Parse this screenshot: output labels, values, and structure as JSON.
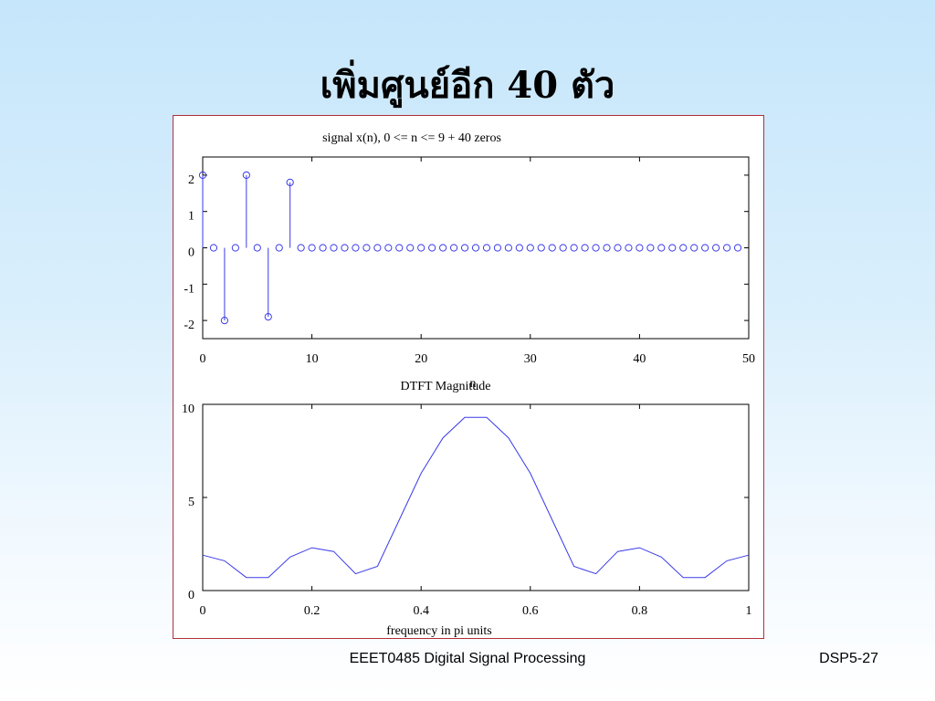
{
  "slide": {
    "title": "เพิ่มศูนย์อีก 40 ตัว",
    "footer_course": "EEET0485 Digital Signal Processing",
    "footer_page": "DSP5-27"
  },
  "colors": {
    "data": "#3a3ae8",
    "frame": "#b0303a"
  },
  "chart_data": [
    {
      "type": "stem",
      "title": "signal x(n), 0 <= n <= 9 + 40 zeros",
      "xlabel": "n",
      "ylabel": "",
      "xlim": [
        0,
        50
      ],
      "ylim": [
        -2.5,
        2.5
      ],
      "xticks": [
        0,
        10,
        20,
        30,
        40,
        50
      ],
      "yticks": [
        -2,
        -1,
        0,
        1,
        2
      ],
      "x_start": 0,
      "values": [
        2,
        0,
        -2,
        0,
        2,
        0,
        -1.9,
        0,
        1.8,
        0,
        0,
        0,
        0,
        0,
        0,
        0,
        0,
        0,
        0,
        0,
        0,
        0,
        0,
        0,
        0,
        0,
        0,
        0,
        0,
        0,
        0,
        0,
        0,
        0,
        0,
        0,
        0,
        0,
        0,
        0,
        0,
        0,
        0,
        0,
        0,
        0,
        0,
        0,
        0,
        0
      ],
      "grid": false
    },
    {
      "type": "line",
      "title": "DTFT Magnitude",
      "xlabel": "frequency in pi units",
      "ylabel": "",
      "xlim": [
        0,
        1
      ],
      "ylim": [
        0,
        10
      ],
      "xticks": [
        0,
        0.2,
        0.4,
        0.6,
        0.8,
        1
      ],
      "yticks": [
        0,
        5,
        10
      ],
      "series": [
        {
          "x": [
            0,
            0.04,
            0.08,
            0.12,
            0.16,
            0.2,
            0.24,
            0.28,
            0.32,
            0.36,
            0.4,
            0.44,
            0.48,
            0.52,
            0.56,
            0.6,
            0.64,
            0.68,
            0.72,
            0.76,
            0.8,
            0.84,
            0.88,
            0.92,
            0.96,
            1.0
          ],
          "values": [
            1.9,
            1.6,
            0.7,
            0.7,
            1.8,
            2.3,
            2.1,
            0.9,
            1.3,
            3.8,
            6.3,
            8.2,
            9.3,
            9.3,
            8.2,
            6.3,
            3.8,
            1.3,
            0.9,
            2.1,
            2.3,
            1.8,
            0.7,
            0.7,
            1.6,
            1.9
          ]
        }
      ],
      "grid": false
    }
  ]
}
